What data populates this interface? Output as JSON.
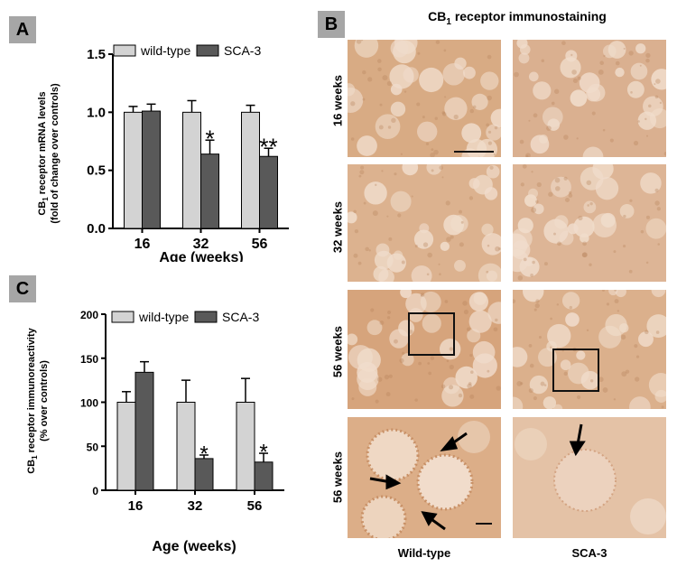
{
  "panels": {
    "a": {
      "letter": "A",
      "ylabel_line1_pre": "CB",
      "ylabel_line1_sub": "1",
      "ylabel_line1_post": " receptor mRNA levels",
      "ylabel_line2": "(fold of change over controls)",
      "xlabel": "Age (weeks)",
      "legend": [
        "wild-type",
        "SCA-3"
      ],
      "significance": [
        "*",
        "**"
      ]
    },
    "b": {
      "letter": "B",
      "title_pre": "CB",
      "title_sub": "1",
      "title_post": " receptor immunostaining",
      "row_labels": [
        "16 weeks",
        "32 weeks",
        "56 weeks",
        "56 weeks"
      ],
      "col_labels": [
        "Wild-type",
        "SCA-3"
      ]
    },
    "c": {
      "letter": "C",
      "ylabel_line1_pre": "CB",
      "ylabel_line1_sub": "1",
      "ylabel_line1_post": " receptor immunoreactivity",
      "ylabel_line2": "(% over controls)",
      "xlabel": "Age (weeks)",
      "legend": [
        "wild-type",
        "SCA-3"
      ],
      "significance": [
        "*",
        "*"
      ]
    }
  },
  "colors": {
    "wild_type": "#d3d3d3",
    "sca3": "#595959",
    "tissue": "#dcae86",
    "letter_bg": "#a6a6a6"
  },
  "chart_data": [
    {
      "type": "bar",
      "panel": "A",
      "categories": [
        "16",
        "32",
        "56"
      ],
      "series": [
        {
          "name": "wild-type",
          "values": [
            1.0,
            1.0,
            1.0
          ],
          "errors": [
            0.05,
            0.1,
            0.06
          ]
        },
        {
          "name": "SCA-3",
          "values": [
            1.01,
            0.64,
            0.62
          ],
          "errors": [
            0.06,
            0.12,
            0.07
          ]
        }
      ],
      "ylim": [
        0.0,
        1.5
      ],
      "yticks": [
        "0.0",
        "0.5",
        "1.0",
        "1.5"
      ],
      "legend_position": "top",
      "annotations": [
        {
          "category": "32",
          "series": "SCA-3",
          "text": "*"
        },
        {
          "category": "56",
          "series": "SCA-3",
          "text": "**"
        }
      ]
    },
    {
      "type": "bar",
      "panel": "C",
      "categories": [
        "16",
        "32",
        "56"
      ],
      "series": [
        {
          "name": "wild-type",
          "values": [
            100,
            100,
            100
          ],
          "errors": [
            12,
            25,
            27
          ]
        },
        {
          "name": "SCA-3",
          "values": [
            134,
            36,
            32
          ],
          "errors": [
            12,
            4,
            10
          ]
        }
      ],
      "ylim": [
        0,
        200
      ],
      "yticks": [
        "0",
        "50",
        "100",
        "150",
        "200"
      ],
      "legend_position": "top",
      "annotations": [
        {
          "category": "32",
          "series": "SCA-3",
          "text": "*"
        },
        {
          "category": "56",
          "series": "SCA-3",
          "text": "*"
        }
      ]
    }
  ]
}
